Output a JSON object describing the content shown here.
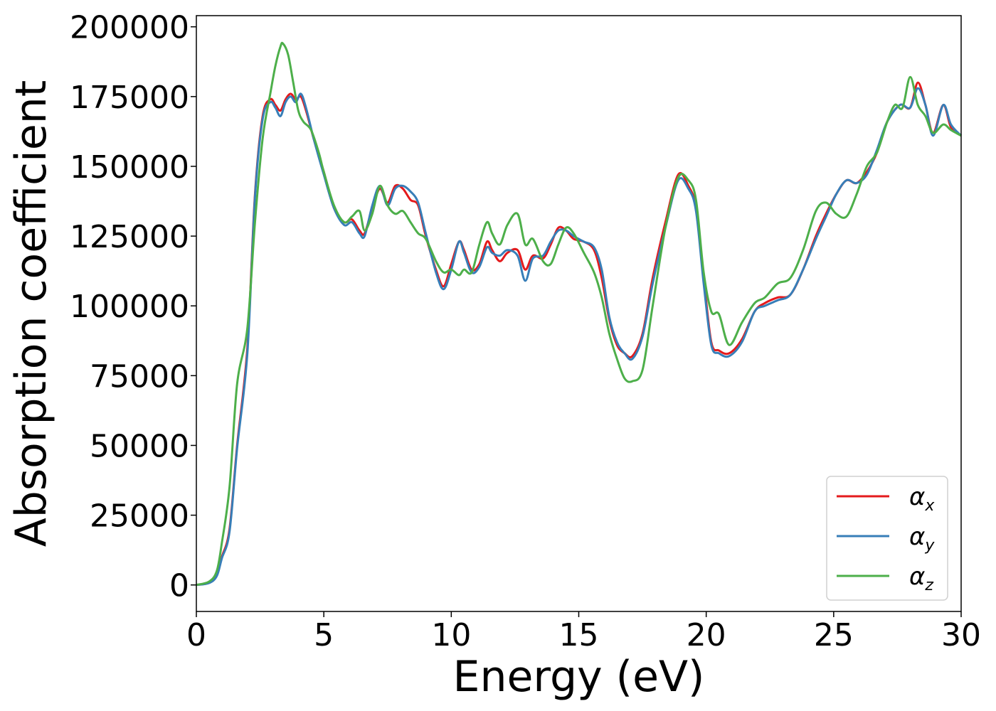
{
  "chart_data": {
    "type": "line",
    "title": "",
    "xlabel": "Energy (eV)",
    "ylabel": "Absorption coefficient",
    "xlim": [
      0,
      30
    ],
    "ylim": [
      -9500,
      204000
    ],
    "xticks": [
      0,
      5,
      10,
      15,
      20,
      25,
      30
    ],
    "yticks": [
      0,
      25000,
      50000,
      75000,
      100000,
      125000,
      150000,
      175000,
      200000
    ],
    "grid": false,
    "legend_position": "lower-right",
    "series": [
      {
        "name": "α",
        "subscript": "x",
        "color": "#e41a1c",
        "x": [
          0,
          0.5,
          0.8,
          1.0,
          1.3,
          1.6,
          2.0,
          2.3,
          2.6,
          2.9,
          3.1,
          3.3,
          3.5,
          3.7,
          3.9,
          4.1,
          4.3,
          4.6,
          5.0,
          5.4,
          5.8,
          6.1,
          6.4,
          6.6,
          6.9,
          7.2,
          7.5,
          7.8,
          8.1,
          8.4,
          8.7,
          9.0,
          9.4,
          9.7,
          10.0,
          10.3,
          10.5,
          10.8,
          11.1,
          11.4,
          11.6,
          11.9,
          12.2,
          12.6,
          12.9,
          13.2,
          13.6,
          13.9,
          14.2,
          14.5,
          14.8,
          15.2,
          15.6,
          15.9,
          16.2,
          16.5,
          16.8,
          17.1,
          17.5,
          17.9,
          18.4,
          18.9,
          19.3,
          19.6,
          19.9,
          20.2,
          20.5,
          20.9,
          21.4,
          21.9,
          22.3,
          22.8,
          23.3,
          23.8,
          24.3,
          24.7,
          25.1,
          25.5,
          25.9,
          26.3,
          26.7,
          27.1,
          27.6,
          28.0,
          28.3,
          28.6,
          28.9,
          29.3,
          29.6,
          30.0
        ],
        "values": [
          0,
          800,
          3500,
          10000,
          20000,
          50000,
          85000,
          140000,
          168000,
          174000,
          172000,
          170000,
          174000,
          176000,
          174000,
          175000,
          170000,
          160000,
          148000,
          135000,
          130000,
          131000,
          127000,
          126000,
          135000,
          142000,
          137000,
          143000,
          142000,
          138000,
          136000,
          125000,
          113000,
          107000,
          115000,
          123000,
          120000,
          113000,
          115000,
          123000,
          120000,
          116000,
          119000,
          120000,
          113000,
          118000,
          117000,
          122000,
          128000,
          127000,
          124000,
          123000,
          120000,
          110000,
          95000,
          86000,
          83000,
          82000,
          90000,
          110000,
          130000,
          147000,
          143000,
          135000,
          110000,
          87000,
          84000,
          83000,
          88000,
          98000,
          101000,
          103000,
          104000,
          113000,
          125000,
          133000,
          140000,
          145000,
          144000,
          148000,
          155000,
          166000,
          172000,
          171000,
          180000,
          172000,
          162000,
          172000,
          164000,
          161000
        ]
      },
      {
        "name": "α",
        "subscript": "y",
        "color": "#377eb8",
        "x": [
          0,
          0.5,
          0.8,
          1.0,
          1.3,
          1.6,
          2.0,
          2.3,
          2.6,
          2.9,
          3.1,
          3.3,
          3.5,
          3.7,
          3.9,
          4.1,
          4.3,
          4.6,
          5.0,
          5.4,
          5.8,
          6.1,
          6.4,
          6.6,
          6.9,
          7.2,
          7.5,
          7.8,
          8.1,
          8.4,
          8.7,
          9.0,
          9.4,
          9.7,
          10.0,
          10.3,
          10.5,
          10.8,
          11.1,
          11.4,
          11.6,
          11.9,
          12.2,
          12.6,
          12.9,
          13.2,
          13.6,
          13.9,
          14.2,
          14.5,
          14.8,
          15.2,
          15.6,
          15.9,
          16.2,
          16.5,
          16.8,
          17.1,
          17.5,
          17.9,
          18.4,
          18.9,
          19.3,
          19.6,
          19.9,
          20.2,
          20.5,
          20.9,
          21.4,
          21.9,
          22.3,
          22.8,
          23.3,
          23.8,
          24.3,
          24.7,
          25.1,
          25.5,
          25.9,
          26.3,
          26.7,
          27.1,
          27.6,
          28.0,
          28.3,
          28.6,
          28.9,
          29.3,
          29.6,
          30.0
        ],
        "values": [
          0,
          700,
          3200,
          9500,
          19000,
          49000,
          83000,
          139000,
          167000,
          173000,
          171000,
          168000,
          173000,
          175000,
          173000,
          176000,
          171000,
          160000,
          147000,
          135000,
          129000,
          130000,
          126000,
          125000,
          136000,
          143000,
          136000,
          142000,
          143000,
          141000,
          137000,
          126000,
          112000,
          106000,
          113000,
          123000,
          119000,
          112000,
          114000,
          121000,
          119000,
          118000,
          120000,
          118000,
          109000,
          117000,
          118000,
          123000,
          127000,
          127000,
          125000,
          123000,
          121000,
          113000,
          96000,
          87000,
          83000,
          81000,
          89000,
          108000,
          128000,
          145000,
          142000,
          134000,
          108000,
          86000,
          83000,
          82000,
          87000,
          98000,
          100000,
          102000,
          104000,
          113000,
          124000,
          132000,
          140000,
          145000,
          144000,
          147000,
          156000,
          166000,
          172000,
          171000,
          178000,
          172000,
          161000,
          172000,
          165000,
          161000
        ]
      },
      {
        "name": "α",
        "subscript": "z",
        "color": "#4daf4a",
        "x": [
          0,
          0.5,
          0.8,
          1.0,
          1.3,
          1.6,
          2.0,
          2.3,
          2.6,
          2.9,
          3.1,
          3.3,
          3.4,
          3.6,
          3.8,
          4.0,
          4.2,
          4.5,
          4.8,
          5.0,
          5.4,
          5.8,
          6.1,
          6.4,
          6.6,
          6.9,
          7.2,
          7.5,
          7.8,
          8.1,
          8.4,
          8.7,
          9.0,
          9.4,
          9.7,
          10.0,
          10.3,
          10.5,
          10.8,
          11.1,
          11.4,
          11.6,
          11.9,
          12.2,
          12.6,
          12.9,
          13.2,
          13.6,
          13.9,
          14.2,
          14.5,
          14.8,
          15.2,
          15.6,
          15.9,
          16.2,
          16.5,
          16.8,
          17.1,
          17.5,
          17.9,
          18.4,
          18.9,
          19.3,
          19.6,
          19.9,
          20.2,
          20.5,
          20.9,
          21.4,
          21.9,
          22.3,
          22.8,
          23.3,
          23.8,
          24.3,
          24.7,
          25.1,
          25.5,
          25.9,
          26.3,
          26.7,
          27.1,
          27.4,
          27.7,
          28.0,
          28.3,
          28.6,
          28.9,
          29.3,
          29.6,
          30.0
        ],
        "values": [
          0,
          1200,
          5000,
          15000,
          35000,
          72000,
          92000,
          130000,
          160000,
          176000,
          186000,
          193000,
          194000,
          190000,
          180000,
          170000,
          166000,
          163000,
          155000,
          148000,
          136000,
          130000,
          132000,
          134000,
          127000,
          133000,
          143000,
          136000,
          133000,
          134000,
          130000,
          126000,
          124000,
          116000,
          112000,
          113000,
          111000,
          113000,
          112000,
          122000,
          130000,
          126000,
          122000,
          129000,
          133000,
          122000,
          124000,
          116000,
          115000,
          122000,
          128000,
          126000,
          119000,
          112000,
          103000,
          90000,
          81000,
          74000,
          73000,
          77000,
          100000,
          128000,
          146000,
          145000,
          138000,
          112000,
          98000,
          97000,
          86000,
          94000,
          101000,
          103000,
          108000,
          110000,
          120000,
          134000,
          137000,
          133000,
          132000,
          140000,
          150000,
          155000,
          166000,
          172000,
          171000,
          182000,
          172000,
          168000,
          162000,
          165000,
          163000,
          161000
        ]
      }
    ]
  }
}
